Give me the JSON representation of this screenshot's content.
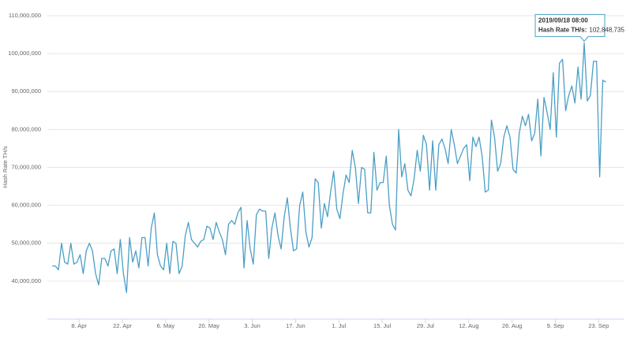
{
  "chart_data": {
    "type": "line",
    "y_label": "Hash Rate TH/s",
    "color": "#4a9fc6",
    "grid": true,
    "x": [
      "2019/03/30 08:00",
      "2019/03/31 08:00",
      "2019/04/01 08:00",
      "2019/04/02 08:00",
      "2019/04/03 08:00",
      "2019/04/04 08:00",
      "2019/04/05 08:00",
      "2019/04/06 08:00",
      "2019/04/07 08:00",
      "2019/04/08 08:00",
      "2019/04/09 08:00",
      "2019/04/10 08:00",
      "2019/04/11 08:00",
      "2019/04/12 08:00",
      "2019/04/13 08:00",
      "2019/04/14 08:00",
      "2019/04/15 08:00",
      "2019/04/16 08:00",
      "2019/04/17 08:00",
      "2019/04/18 08:00",
      "2019/04/19 08:00",
      "2019/04/20 08:00",
      "2019/04/21 08:00",
      "2019/04/22 08:00",
      "2019/04/23 08:00",
      "2019/04/24 08:00",
      "2019/04/25 08:00",
      "2019/04/26 08:00",
      "2019/04/27 08:00",
      "2019/04/28 08:00",
      "2019/04/29 08:00",
      "2019/04/30 08:00",
      "2019/05/01 08:00",
      "2019/05/02 08:00",
      "2019/05/03 08:00",
      "2019/05/04 08:00",
      "2019/05/05 08:00",
      "2019/05/06 08:00",
      "2019/05/07 08:00",
      "2019/05/08 08:00",
      "2019/05/09 08:00",
      "2019/05/10 08:00",
      "2019/05/11 08:00",
      "2019/05/12 08:00",
      "2019/05/13 08:00",
      "2019/05/14 08:00",
      "2019/05/15 08:00",
      "2019/05/16 08:00",
      "2019/05/17 08:00",
      "2019/05/18 08:00",
      "2019/05/19 08:00",
      "2019/05/20 08:00",
      "2019/05/21 08:00",
      "2019/05/22 08:00",
      "2019/05/23 08:00",
      "2019/05/24 08:00",
      "2019/05/25 08:00",
      "2019/05/26 08:00",
      "2019/05/27 08:00",
      "2019/05/28 08:00",
      "2019/05/29 08:00",
      "2019/05/30 08:00",
      "2019/05/31 08:00",
      "2019/06/01 08:00",
      "2019/06/02 08:00",
      "2019/06/03 08:00",
      "2019/06/04 08:00",
      "2019/06/05 08:00",
      "2019/06/06 08:00",
      "2019/06/07 08:00",
      "2019/06/08 08:00",
      "2019/06/09 08:00",
      "2019/06/10 08:00",
      "2019/06/11 08:00",
      "2019/06/12 08:00",
      "2019/06/13 08:00",
      "2019/06/14 08:00",
      "2019/06/15 08:00",
      "2019/06/16 08:00",
      "2019/06/17 08:00",
      "2019/06/18 08:00",
      "2019/06/19 08:00",
      "2019/06/20 08:00",
      "2019/06/21 08:00",
      "2019/06/22 08:00",
      "2019/06/23 08:00",
      "2019/06/24 08:00",
      "2019/06/25 08:00",
      "2019/06/26 08:00",
      "2019/06/27 08:00",
      "2019/06/28 08:00",
      "2019/06/29 08:00",
      "2019/06/30 08:00",
      "2019/07/01 08:00",
      "2019/07/02 08:00",
      "2019/07/03 08:00",
      "2019/07/04 08:00",
      "2019/07/05 08:00",
      "2019/07/06 08:00",
      "2019/07/07 08:00",
      "2019/07/08 08:00",
      "2019/07/09 08:00",
      "2019/07/10 08:00",
      "2019/07/11 08:00",
      "2019/07/12 08:00",
      "2019/07/13 08:00",
      "2019/07/14 08:00",
      "2019/07/15 08:00",
      "2019/07/16 08:00",
      "2019/07/17 08:00",
      "2019/07/18 08:00",
      "2019/07/19 08:00",
      "2019/07/20 08:00",
      "2019/07/21 08:00",
      "2019/07/22 08:00",
      "2019/07/23 08:00",
      "2019/07/24 08:00",
      "2019/07/25 08:00",
      "2019/07/26 08:00",
      "2019/07/27 08:00",
      "2019/07/28 08:00",
      "2019/07/29 08:00",
      "2019/07/30 08:00",
      "2019/07/31 08:00",
      "2019/08/01 08:00",
      "2019/08/02 08:00",
      "2019/08/03 08:00",
      "2019/08/04 08:00",
      "2019/08/05 08:00",
      "2019/08/06 08:00",
      "2019/08/07 08:00",
      "2019/08/08 08:00",
      "2019/08/09 08:00",
      "2019/08/10 08:00",
      "2019/08/11 08:00",
      "2019/08/12 08:00",
      "2019/08/13 08:00",
      "2019/08/14 08:00",
      "2019/08/15 08:00",
      "2019/08/16 08:00",
      "2019/08/17 08:00",
      "2019/08/18 08:00",
      "2019/08/19 08:00",
      "2019/08/20 08:00",
      "2019/08/21 08:00",
      "2019/08/22 08:00",
      "2019/08/23 08:00",
      "2019/08/24 08:00",
      "2019/08/25 08:00",
      "2019/08/26 08:00",
      "2019/08/27 08:00",
      "2019/08/28 08:00",
      "2019/08/29 08:00",
      "2019/08/30 08:00",
      "2019/08/31 08:00",
      "2019/09/01 08:00",
      "2019/09/02 08:00",
      "2019/09/03 08:00",
      "2019/09/04 08:00",
      "2019/09/05 08:00",
      "2019/09/06 08:00",
      "2019/09/07 08:00",
      "2019/09/08 08:00",
      "2019/09/09 08:00",
      "2019/09/10 08:00",
      "2019/09/11 08:00",
      "2019/09/12 08:00",
      "2019/09/13 08:00",
      "2019/09/14 08:00",
      "2019/09/15 08:00",
      "2019/09/16 08:00",
      "2019/09/17 08:00",
      "2019/09/18 08:00",
      "2019/09/19 08:00",
      "2019/09/20 08:00",
      "2019/09/21 08:00",
      "2019/09/22 08:00",
      "2019/09/23 08:00",
      "2019/09/24 08:00",
      "2019/09/25 08:00"
    ],
    "values": [
      44000000,
      44000000,
      43000000,
      50000000,
      45000000,
      44500000,
      50000000,
      44500000,
      45000000,
      47000000,
      42000000,
      48000000,
      50000000,
      48000000,
      42000000,
      39000000,
      46000000,
      46000000,
      44000000,
      48000000,
      48500000,
      42000000,
      51000000,
      42000000,
      37000000,
      51500000,
      45000000,
      48000000,
      43500000,
      51500000,
      51500000,
      44000000,
      54000000,
      58000000,
      47000000,
      44000000,
      43000000,
      50000000,
      42000000,
      50500000,
      50000000,
      42000000,
      44000000,
      52000000,
      55500000,
      51000000,
      50000000,
      49000000,
      50500000,
      51000000,
      54500000,
      54000000,
      51000000,
      55500000,
      53000000,
      51000000,
      47000000,
      55000000,
      56000000,
      55000000,
      58000000,
      59500000,
      43500000,
      56000000,
      48500000,
      44500000,
      57500000,
      59000000,
      58500000,
      58500000,
      46000000,
      54000000,
      58000000,
      52000000,
      48500000,
      57000000,
      62000000,
      54000000,
      48000000,
      48500000,
      60000000,
      63500000,
      53000000,
      49000000,
      51500000,
      67000000,
      66000000,
      54000000,
      60500000,
      57000000,
      63500000,
      69000000,
      59000000,
      56500000,
      63000000,
      68000000,
      66000000,
      74500000,
      70000000,
      60500000,
      70000000,
      69500000,
      58000000,
      58000000,
      74000000,
      64000000,
      66000000,
      66000000,
      73000000,
      60000000,
      55000000,
      53500000,
      80000000,
      67500000,
      71000000,
      64000000,
      62500000,
      67000000,
      74500000,
      69000000,
      78500000,
      76000000,
      64000000,
      77000000,
      64000000,
      76000000,
      77500000,
      75000000,
      71000000,
      80000000,
      76000000,
      71000000,
      73000000,
      75000000,
      76000000,
      66500000,
      78000000,
      75500000,
      78000000,
      73000000,
      63500000,
      64000000,
      82500000,
      78000000,
      69000000,
      71000000,
      78000000,
      81000000,
      78000000,
      69500000,
      68500000,
      79000000,
      83500000,
      81000000,
      84000000,
      77000000,
      79000000,
      88000000,
      73000000,
      88500000,
      84500000,
      80000000,
      95000000,
      78000000,
      97500000,
      98500000,
      85000000,
      89000000,
      91500000,
      87000000,
      96500000,
      88000000,
      102848735,
      87500000,
      89000000,
      98000000,
      98000000,
      67500000,
      93000000,
      92500000
    ],
    "xlim": [
      "2019/03/29 00:00",
      "2019/09/27 00:00"
    ],
    "xticks": [
      {
        "value": "2019/04/08 00:00",
        "label": "8. Apr"
      },
      {
        "value": "2019/04/22 00:00",
        "label": "22. Apr"
      },
      {
        "value": "2019/05/06 00:00",
        "label": "6. May"
      },
      {
        "value": "2019/05/20 00:00",
        "label": "20. May"
      },
      {
        "value": "2019/06/03 00:00",
        "label": "3. Jun"
      },
      {
        "value": "2019/06/17 00:00",
        "label": "17. Jun"
      },
      {
        "value": "2019/07/01 00:00",
        "label": "1. Jul"
      },
      {
        "value": "2019/07/15 00:00",
        "label": "15. Jul"
      },
      {
        "value": "2019/07/29 00:00",
        "label": "29. Jul"
      },
      {
        "value": "2019/08/12 00:00",
        "label": "12. Aug"
      },
      {
        "value": "2019/08/26 00:00",
        "label": "26. Aug"
      },
      {
        "value": "2019/09/09 00:00",
        "label": "9. Sep"
      },
      {
        "value": "2019/09/23 00:00",
        "label": "23. Sep"
      }
    ],
    "ylim": [
      30000000,
      110000000
    ],
    "yticks": [
      {
        "value": 40000000,
        "label": "40,000,000"
      },
      {
        "value": 50000000,
        "label": "50,000,000"
      },
      {
        "value": 60000000,
        "label": "60,000,000"
      },
      {
        "value": 70000000,
        "label": "70,000,000"
      },
      {
        "value": 80000000,
        "label": "80,000,000"
      },
      {
        "value": 90000000,
        "label": "90,000,000"
      },
      {
        "value": 100000000,
        "label": "100,000,000"
      },
      {
        "value": 110000000,
        "label": "110,000,000"
      }
    ],
    "tooltip": {
      "title": "2019/09/18 08:00",
      "label": "Hash Rate TH/s:",
      "value": 102848735,
      "value_label": "102,848,735"
    }
  }
}
